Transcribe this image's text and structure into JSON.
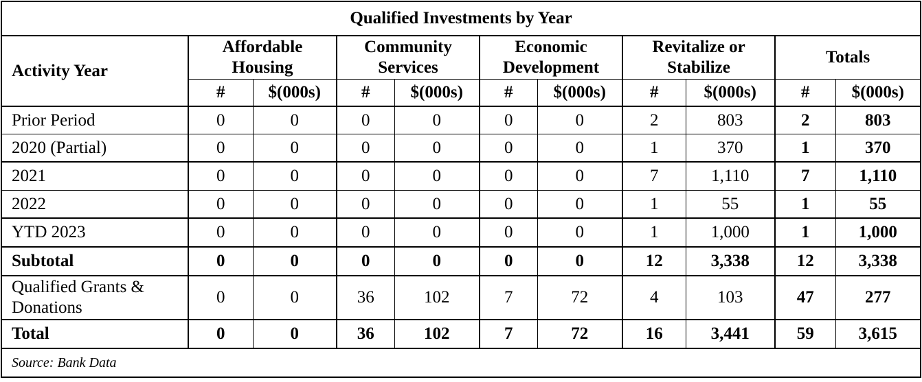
{
  "title": "Qualified Investments by Year",
  "header": {
    "activity_year": "Activity Year",
    "groups": [
      {
        "label_line1": "Affordable",
        "label_line2": "Housing"
      },
      {
        "label_line1": "Community",
        "label_line2": "Services"
      },
      {
        "label_line1": "Economic",
        "label_line2": "Development"
      },
      {
        "label_line1": "Revitalize or",
        "label_line2": "Stabilize"
      },
      {
        "label_line1": "Totals",
        "label_line2": ""
      }
    ],
    "count_label": "#",
    "amount_label": "$(000s)"
  },
  "rows": [
    {
      "label": "Prior Period",
      "values": [
        "0",
        "0",
        "0",
        "0",
        "0",
        "0",
        "2",
        "803",
        "2",
        "803"
      ]
    },
    {
      "label": "2020 (Partial)",
      "values": [
        "0",
        "0",
        "0",
        "0",
        "0",
        "0",
        "1",
        "370",
        "1",
        "370"
      ]
    },
    {
      "label": "2021",
      "values": [
        "0",
        "0",
        "0",
        "0",
        "0",
        "0",
        "7",
        "1,110",
        "7",
        "1,110"
      ]
    },
    {
      "label": "2022",
      "values": [
        "0",
        "0",
        "0",
        "0",
        "0",
        "0",
        "1",
        "55",
        "1",
        "55"
      ]
    },
    {
      "label": "YTD 2023",
      "values": [
        "0",
        "0",
        "0",
        "0",
        "0",
        "0",
        "1",
        "1,000",
        "1",
        "1,000"
      ]
    },
    {
      "label": "Subtotal",
      "values": [
        "0",
        "0",
        "0",
        "0",
        "0",
        "0",
        "12",
        "3,338",
        "12",
        "3,338"
      ]
    },
    {
      "label_line1": "Qualified Grants &",
      "label_line2": "Donations",
      "values": [
        "0",
        "0",
        "36",
        "102",
        "7",
        "72",
        "4",
        "103",
        "47",
        "277"
      ]
    },
    {
      "label": "Total",
      "values": [
        "0",
        "0",
        "36",
        "102",
        "7",
        "72",
        "16",
        "3,441",
        "59",
        "3,615"
      ]
    }
  ],
  "source": "Source:  Bank Data"
}
